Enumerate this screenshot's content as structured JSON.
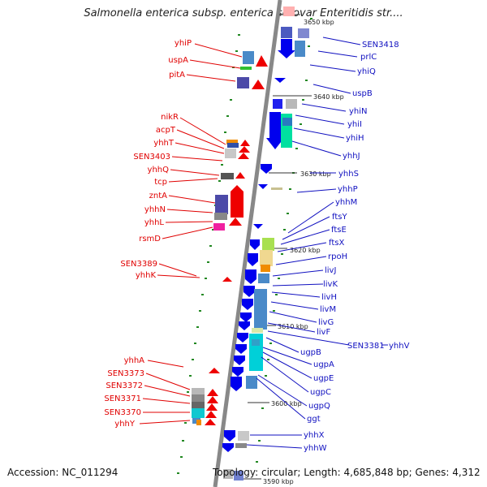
{
  "title": "Salmonella enterica subsp. enterica serovar Enteritidis str....",
  "footer": {
    "accession": "Accession: NC_011294",
    "info": "Topology: circular; Length: 4,685,848 bp; Genes: 4,312"
  },
  "ticks": [
    "3650 kbp",
    "3640 kbp",
    "3630 kbp",
    "3620 kbp",
    "3610 kbp",
    "3600 kbp",
    "3590 kbp"
  ],
  "left_genes": [
    "yhiP",
    "uspA",
    "pitA",
    "nikR",
    "acpT",
    "yhhT",
    "SEN3403",
    "yhhQ",
    "tcp",
    "zntA",
    "yhhN",
    "yhhL",
    "rsmD",
    "SEN3389",
    "yhhK",
    "yhhA",
    "SEN3373",
    "SEN3372",
    "SEN3371",
    "SEN3370",
    "yhhY"
  ],
  "right_genes": [
    "SEN3418",
    "prlC",
    "yhiQ",
    "uspB",
    "yhiN",
    "yhiI",
    "yhiH",
    "yhhJ",
    "yhhS",
    "yhhP",
    "yhhM",
    "ftsY",
    "ftsE",
    "ftsX",
    "rpoH",
    "livJ",
    "livK",
    "livH",
    "livM",
    "livG",
    "livF",
    "SEN3381",
    "yhhV",
    "ugpB",
    "ugpA",
    "ugpE",
    "ugpC",
    "ugpQ",
    "ggt",
    "yhhX",
    "yhhW"
  ],
  "colors": {
    "left_label": "#e00000",
    "right_label": "#1010c0",
    "forward_arrow": "#0000ee",
    "reverse_arrow": "#ee0000",
    "backbone": "#888888",
    "tick_dot": "#228822"
  }
}
